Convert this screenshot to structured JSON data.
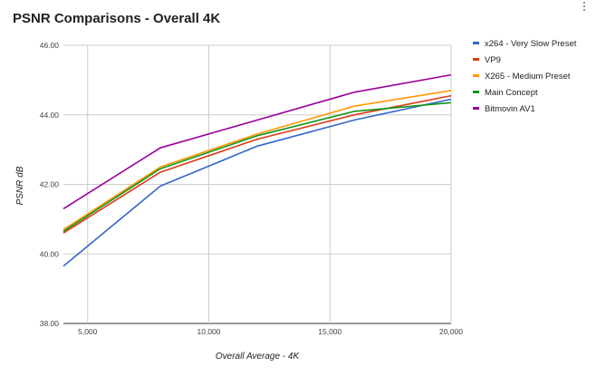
{
  "chart_data": {
    "type": "line",
    "title": "PSNR Comparisons - Overall 4K",
    "xlabel": "Overall Average - 4K",
    "ylabel": "PSNR dB",
    "xlim": [
      4000,
      20000
    ],
    "ylim": [
      38.0,
      46.0
    ],
    "x_ticks": [
      5000,
      10000,
      15000,
      20000
    ],
    "x_tick_labels": [
      "5,000",
      "10,000",
      "15,000",
      "20,000"
    ],
    "y_ticks": [
      38,
      40,
      42,
      44,
      46
    ],
    "y_tick_labels": [
      "38.00",
      "40.00",
      "42.00",
      "44.00",
      "46.00"
    ],
    "grid": true,
    "legend_position": "right",
    "series": [
      {
        "name": "x264 - Very Slow Preset",
        "color": "#3366cc",
        "x": [
          4000,
          8000,
          12000,
          16000,
          20000
        ],
        "y": [
          39.65,
          41.95,
          43.1,
          43.85,
          44.45
        ]
      },
      {
        "name": "VP9",
        "color": "#dc3912",
        "x": [
          4000,
          8000,
          12000,
          16000,
          20000
        ],
        "y": [
          40.6,
          42.35,
          43.3,
          44.0,
          44.55
        ]
      },
      {
        "name": "X265 - Medium Preset",
        "color": "#ff9900",
        "x": [
          4000,
          8000,
          12000,
          16000,
          20000
        ],
        "y": [
          40.7,
          42.5,
          43.45,
          44.25,
          44.7
        ]
      },
      {
        "name": "Main Concept",
        "color": "#109618",
        "x": [
          4000,
          8000,
          12000,
          16000,
          20000
        ],
        "y": [
          40.65,
          42.45,
          43.4,
          44.1,
          44.35
        ]
      },
      {
        "name": "Bitmovin AV1",
        "color": "#990099",
        "x": [
          4000,
          8000,
          12000,
          16000,
          20000
        ],
        "y": [
          41.3,
          43.05,
          43.85,
          44.65,
          45.15
        ]
      }
    ]
  },
  "menu": {
    "icon": "kebab-menu-icon"
  }
}
